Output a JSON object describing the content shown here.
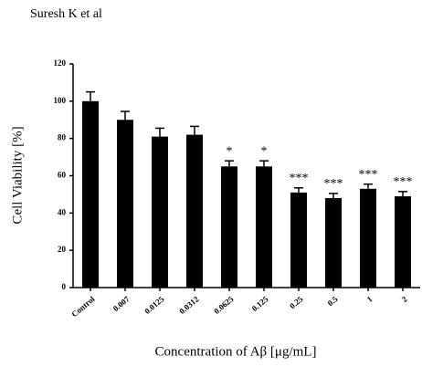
{
  "header": {
    "author": "Suresh K et al"
  },
  "chart_data": {
    "type": "bar",
    "x_label": "Concentration of Aβ [μg/mL]",
    "y_label": "Cell Viability [%]",
    "categories": [
      "Control",
      "0.007",
      "0.0125",
      "0.0312",
      "0.0625",
      "0.125",
      "0.25",
      "0.5",
      "1",
      "2"
    ],
    "values": [
      100,
      90,
      81,
      82,
      65,
      65,
      51,
      48,
      53,
      49
    ],
    "errors": [
      5,
      4.5,
      4.5,
      4.5,
      3,
      3,
      2.5,
      2.5,
      2.5,
      2.5
    ],
    "annotations": [
      null,
      null,
      null,
      null,
      "*",
      "*",
      "***",
      "***",
      "***",
      "***"
    ],
    "color": "#000000",
    "ylim": [
      0,
      120
    ],
    "yticks": [
      0,
      20,
      40,
      60,
      80,
      100,
      120
    ],
    "grid": false
  }
}
